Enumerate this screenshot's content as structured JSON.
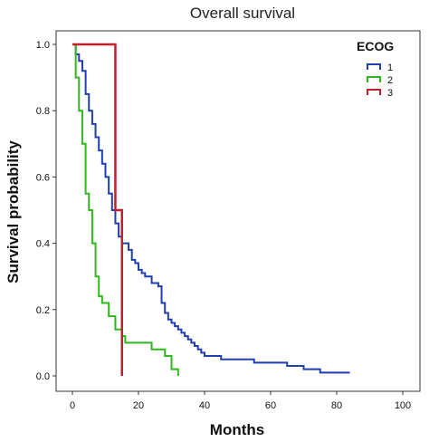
{
  "chart_data": {
    "type": "line",
    "step": true,
    "title": "Overall survival",
    "xlabel": "Months",
    "ylabel": "Survival probability",
    "xlim": [
      0,
      100
    ],
    "ylim": [
      0,
      1
    ],
    "x_ticks": [
      "0",
      "20",
      "40",
      "60",
      "80",
      "100"
    ],
    "y_ticks": [
      "0.0",
      "0.2",
      "0.4",
      "0.6",
      "0.8",
      "1.0"
    ],
    "grid": false,
    "legend": {
      "title": "ECOG",
      "placement": "top-right"
    },
    "series": [
      {
        "name": "1",
        "color": "#1f3fb0",
        "x": [
          0,
          1,
          2,
          3,
          4,
          5,
          6,
          7,
          8,
          9,
          10,
          11,
          12,
          13,
          14,
          15,
          16,
          17,
          18,
          19,
          20,
          21,
          22,
          24,
          26,
          27,
          28,
          29,
          30,
          31,
          32,
          33,
          34,
          35,
          36,
          37,
          38,
          39,
          40,
          45,
          50,
          55,
          60,
          65,
          70,
          75,
          80,
          84
        ],
        "y": [
          1.0,
          0.97,
          0.95,
          0.92,
          0.85,
          0.8,
          0.76,
          0.72,
          0.68,
          0.64,
          0.6,
          0.55,
          0.5,
          0.46,
          0.42,
          0.4,
          0.4,
          0.38,
          0.35,
          0.34,
          0.32,
          0.31,
          0.3,
          0.28,
          0.27,
          0.22,
          0.19,
          0.17,
          0.16,
          0.15,
          0.14,
          0.13,
          0.12,
          0.11,
          0.1,
          0.09,
          0.08,
          0.07,
          0.06,
          0.05,
          0.05,
          0.04,
          0.04,
          0.03,
          0.02,
          0.01,
          0.01,
          0.01
        ]
      },
      {
        "name": "2",
        "color": "#2fb81c",
        "x": [
          0,
          1,
          2,
          3,
          4,
          5,
          6,
          7,
          8,
          9,
          11,
          13,
          14,
          15,
          16,
          20,
          24,
          28,
          30,
          32
        ],
        "y": [
          1.0,
          0.9,
          0.8,
          0.7,
          0.55,
          0.5,
          0.4,
          0.3,
          0.24,
          0.22,
          0.18,
          0.14,
          0.14,
          0.12,
          0.1,
          0.1,
          0.08,
          0.06,
          0.02,
          0.0
        ]
      },
      {
        "name": "3",
        "color": "#c0202a",
        "x": [
          0,
          13,
          15
        ],
        "y": [
          1.0,
          0.5,
          0.0
        ]
      }
    ]
  }
}
